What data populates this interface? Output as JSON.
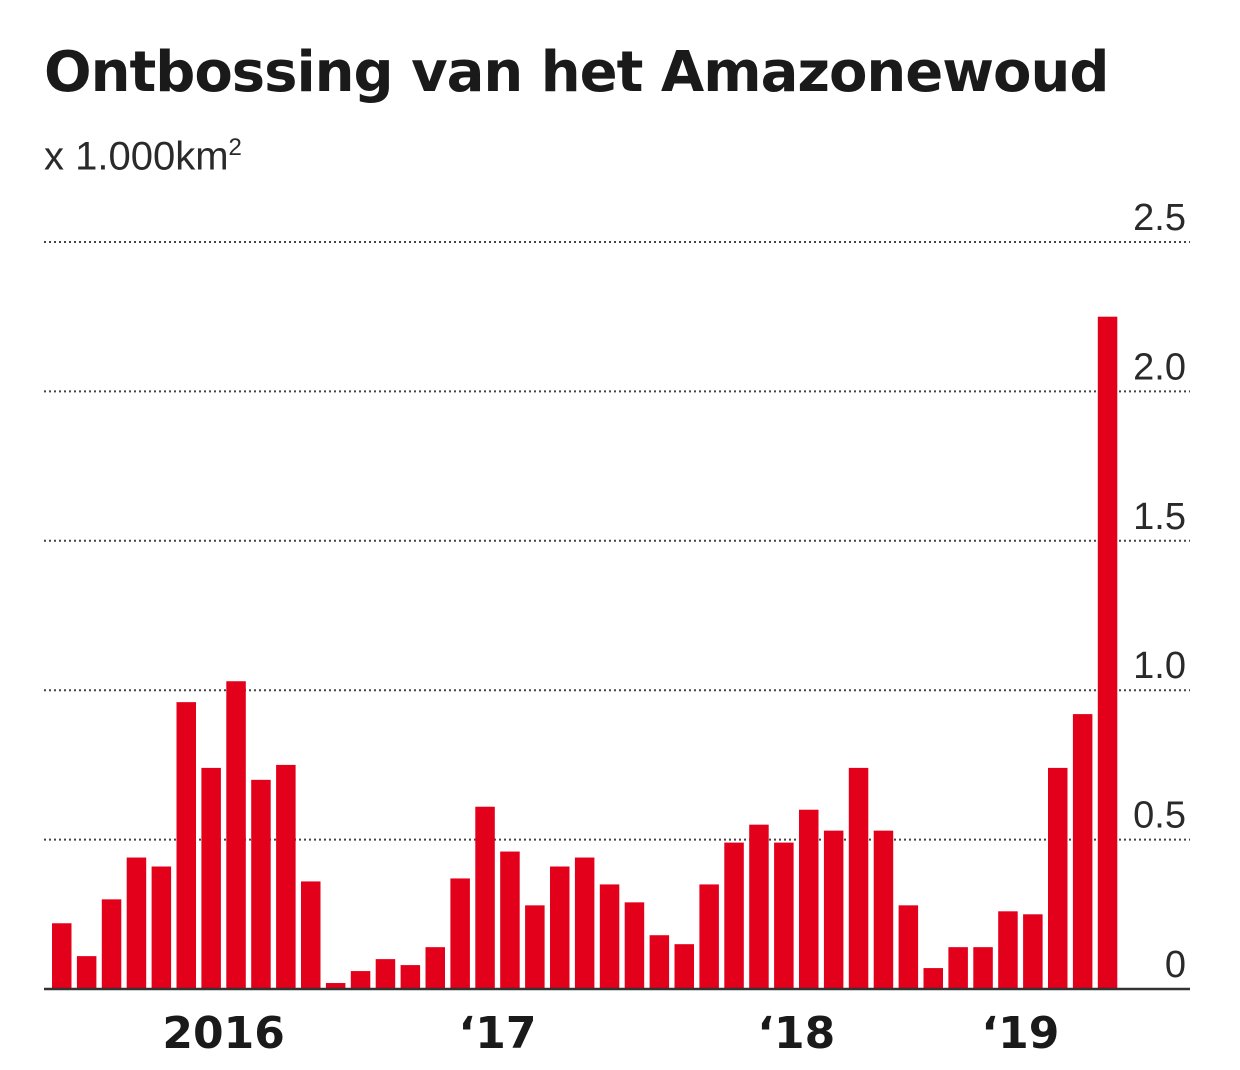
{
  "chart_title": "Ontbossing van het Amazonewoud",
  "unit_label": {
    "base": "x 1.000km",
    "superscript": "2"
  },
  "colors": {
    "bar": "#e3001b",
    "text": "#1a1a1a",
    "grid": "#444444"
  },
  "chart_data": {
    "type": "bar",
    "title": "Ontbossing van het Amazonewoud",
    "ylabel": "x 1.000km2",
    "ylim": [
      0,
      2.5
    ],
    "yticks": [
      "0",
      "0.5",
      "1.0",
      "1.5",
      "2.0",
      "2.5"
    ],
    "ytick_values": [
      0,
      0.5,
      1.0,
      1.5,
      2.0,
      2.5
    ],
    "grid": true,
    "x_tick_labels": [
      {
        "label": "2016",
        "bar_index": 6.5
      },
      {
        "label": "‘17",
        "bar_index": 17.5
      },
      {
        "label": "‘18",
        "bar_index": 29.5
      },
      {
        "label": "‘19",
        "bar_index": 38.5
      }
    ],
    "values": [
      0.22,
      0.11,
      0.3,
      0.44,
      0.41,
      0.96,
      0.74,
      1.03,
      0.7,
      0.75,
      0.36,
      0.02,
      0.06,
      0.1,
      0.08,
      0.14,
      0.37,
      0.61,
      0.46,
      0.28,
      0.41,
      0.44,
      0.35,
      0.29,
      0.18,
      0.15,
      0.35,
      0.49,
      0.55,
      0.49,
      0.6,
      0.53,
      0.74,
      0.53,
      0.28,
      0.07,
      0.14,
      0.14,
      0.26,
      0.25,
      0.74,
      0.92,
      2.25
    ]
  }
}
